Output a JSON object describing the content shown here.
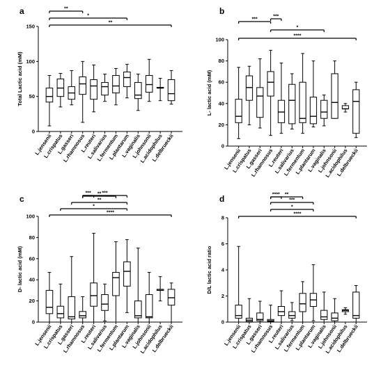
{
  "categories": [
    "L.jensenii",
    "L.crispatus",
    "L.gasseri",
    "L.rhamnosus",
    "L.reuteri",
    "L.salivarius",
    "L.fermentum",
    "L.plantarum",
    "L.vaginalis",
    "L.johnsonii",
    "L.acidophilus",
    "L.delbrueckii"
  ],
  "chart_data": [
    {
      "panel": "a",
      "type": "boxplot",
      "ylabel": "Total Lactic acid (mM)",
      "ylim": [
        0,
        150
      ],
      "yticks": [
        0,
        50,
        100,
        150
      ],
      "series": [
        {
          "name": "L.jensenii",
          "min": 8,
          "q1": 42,
          "median": 50,
          "q3": 62,
          "max": 80
        },
        {
          "name": "L.crispatus",
          "min": 35,
          "q1": 50,
          "median": 62,
          "q3": 75,
          "max": 83
        },
        {
          "name": "L.gasseri",
          "min": 38,
          "q1": 46,
          "median": 55,
          "q3": 64,
          "max": 87
        },
        {
          "name": "L.rhamnosus",
          "min": 13,
          "q1": 53,
          "median": 68,
          "q3": 78,
          "max": 100
        },
        {
          "name": "L.reuteri",
          "min": 28,
          "q1": 46,
          "median": 65,
          "q3": 74,
          "max": 95
        },
        {
          "name": "L.salivarius",
          "min": 43,
          "q1": 52,
          "median": 64,
          "q3": 70,
          "max": 82
        },
        {
          "name": "L.fermentum",
          "min": 38,
          "q1": 55,
          "median": 65,
          "q3": 80,
          "max": 90
        },
        {
          "name": "L.plantarum",
          "min": 48,
          "q1": 64,
          "median": 77,
          "q3": 85,
          "max": 96
        },
        {
          "name": "L.vaginalis",
          "min": 30,
          "q1": 47,
          "median": 52,
          "q3": 70,
          "max": 82
        },
        {
          "name": "L.johnsonii",
          "min": 43,
          "q1": 56,
          "median": 67,
          "q3": 80,
          "max": 103
        },
        {
          "name": "L.acidophilus",
          "min": 44,
          "q1": 62,
          "median": 62,
          "q3": 63,
          "max": 76
        },
        {
          "name": "L.delbrueckii",
          "min": 39,
          "q1": 44,
          "median": 54,
          "q3": 74,
          "max": 87
        }
      ],
      "comparisons": [
        {
          "from": 0,
          "to": 3,
          "label": "**",
          "level": 1
        },
        {
          "from": 0,
          "to": 7,
          "label": "*",
          "level": 2
        },
        {
          "from": 0,
          "to": 11,
          "label": "**",
          "level": 3
        }
      ]
    },
    {
      "panel": "b",
      "type": "boxplot",
      "ylabel": "L- lactic acid (mM)",
      "ylim": [
        0,
        100
      ],
      "yticks": [
        0,
        20,
        40,
        60,
        80,
        100
      ],
      "series": [
        {
          "name": "L.jensenii",
          "min": 7,
          "q1": 22,
          "median": 28,
          "q3": 44,
          "max": 74
        },
        {
          "name": "L.crispatus",
          "min": 20,
          "q1": 43,
          "median": 55,
          "q3": 66,
          "max": 75
        },
        {
          "name": "L.gasseri",
          "min": 17,
          "q1": 27,
          "median": 47,
          "q3": 55,
          "max": 82
        },
        {
          "name": "L.rhamnosus",
          "min": 10,
          "q1": 47,
          "median": 60,
          "q3": 70,
          "max": 90
        },
        {
          "name": "L.reuteri",
          "min": 12,
          "q1": 22,
          "median": 32,
          "q3": 43,
          "max": 78
        },
        {
          "name": "L.salivarius",
          "min": 16,
          "q1": 21,
          "median": 43,
          "q3": 58,
          "max": 68
        },
        {
          "name": "L.fermentum",
          "min": 12,
          "q1": 22,
          "median": 26,
          "q3": 60,
          "max": 87
        },
        {
          "name": "L.plantarum",
          "min": 18,
          "q1": 21,
          "median": 28,
          "q3": 46,
          "max": 80
        },
        {
          "name": "L.vaginalis",
          "min": 19,
          "q1": 26,
          "median": 32,
          "q3": 43,
          "max": 48
        },
        {
          "name": "L.johnsonii",
          "min": 26,
          "q1": 26,
          "median": 41,
          "q3": 68,
          "max": 80
        },
        {
          "name": "L.acidophilus",
          "min": 32,
          "q1": 35,
          "median": 35,
          "q3": 38,
          "max": 40
        },
        {
          "name": "L.delbrueckii",
          "min": 8,
          "q1": 12,
          "median": 42,
          "q3": 53,
          "max": 60
        }
      ],
      "comparisons": [
        {
          "from": 3,
          "to": 4,
          "label": "***",
          "level": 1
        },
        {
          "from": 0,
          "to": 3,
          "label": "***",
          "level": 2
        },
        {
          "from": 3,
          "to": 8,
          "label": "*",
          "level": 3
        },
        {
          "from": 0,
          "to": 11,
          "label": "****",
          "level": 4
        }
      ]
    },
    {
      "panel": "c",
      "type": "boxplot",
      "ylabel": "D- lactic acid (mM)",
      "ylim": [
        0,
        100
      ],
      "yticks": [
        0,
        20,
        40,
        60,
        80,
        100
      ],
      "series": [
        {
          "name": "L.jensenii",
          "min": 0,
          "q1": 8,
          "median": 14,
          "q3": 30,
          "max": 47
        },
        {
          "name": "L.crispatus",
          "min": 0,
          "q1": 4,
          "median": 8,
          "q3": 15,
          "max": 36
        },
        {
          "name": "L.gasseri",
          "min": 0,
          "q1": 3,
          "median": 5,
          "q3": 24,
          "max": 62
        },
        {
          "name": "L.rhamnosus",
          "min": 0,
          "q1": 4,
          "median": 6,
          "q3": 10,
          "max": 24
        },
        {
          "name": "L.reuteri",
          "min": 0,
          "q1": 15,
          "median": 25,
          "q3": 37,
          "max": 84
        },
        {
          "name": "L.salivarius",
          "min": 1,
          "q1": 11,
          "median": 17,
          "q3": 26,
          "max": 36
        },
        {
          "name": "L.fermentum",
          "min": 0,
          "q1": 25,
          "median": 42,
          "q3": 47,
          "max": 76
        },
        {
          "name": "L.plantarum",
          "min": 9,
          "q1": 34,
          "median": 48,
          "q3": 57,
          "max": 78
        },
        {
          "name": "L.vaginalis",
          "min": 0,
          "q1": 4,
          "median": 6,
          "q3": 20,
          "max": 70
        },
        {
          "name": "L.johnsonii",
          "min": 0,
          "q1": 4,
          "median": 5,
          "q3": 26,
          "max": 47
        },
        {
          "name": "L.acidophilus",
          "min": 20,
          "q1": 30,
          "median": 30,
          "q3": 31,
          "max": 43
        },
        {
          "name": "L.delbrueckii",
          "min": 0,
          "q1": 16,
          "median": 23,
          "q3": 31,
          "max": 37
        }
      ],
      "comparisons": [
        {
          "from": 3,
          "to": 4,
          "label": "***",
          "level": 1
        },
        {
          "from": 3,
          "to": 7,
          "label": "***",
          "level": 2
        },
        {
          "from": 3,
          "to": 6,
          "label": "**",
          "level": 3
        },
        {
          "from": 2,
          "to": 7,
          "label": "**",
          "level": 4
        },
        {
          "from": 1,
          "to": 7,
          "label": "*",
          "level": 5
        },
        {
          "from": 0,
          "to": 11,
          "label": "****",
          "level": 6
        }
      ]
    },
    {
      "panel": "d",
      "type": "boxplot",
      "ylabel": "D/L lactic acid ratio",
      "ylim": [
        0,
        8
      ],
      "yticks": [
        0,
        2,
        4,
        6,
        8
      ],
      "series": [
        {
          "name": "L.jensenii",
          "min": 0,
          "q1": 0.3,
          "median": 0.5,
          "q3": 1.3,
          "max": 5.8
        },
        {
          "name": "L.crispatus",
          "min": 0,
          "q1": 0.05,
          "median": 0.15,
          "q3": 0.3,
          "max": 1.8
        },
        {
          "name": "L.gasseri",
          "min": 0,
          "q1": 0.1,
          "median": 0.2,
          "q3": 0.7,
          "max": 1.6
        },
        {
          "name": "L.rhamnosus",
          "min": 0,
          "q1": 0.05,
          "median": 0.1,
          "q3": 0.2,
          "max": 1.3
        },
        {
          "name": "L.reuteri",
          "min": 0,
          "q1": 0.5,
          "median": 0.8,
          "q3": 1.2,
          "max": 2.4
        },
        {
          "name": "L.salivarius",
          "min": 0.1,
          "q1": 0.3,
          "median": 0.5,
          "q3": 0.8,
          "max": 1.5
        },
        {
          "name": "L.fermentum",
          "min": 0,
          "q1": 0.8,
          "median": 1.4,
          "q3": 2.2,
          "max": 3.1
        },
        {
          "name": "L.plantarum",
          "min": 0.1,
          "q1": 1.2,
          "median": 1.7,
          "q3": 2.2,
          "max": 4.4
        },
        {
          "name": "L.vaginalis",
          "min": 0,
          "q1": 0.2,
          "median": 0.4,
          "q3": 0.9,
          "max": 2.3
        },
        {
          "name": "L.johnsonii",
          "min": 0,
          "q1": 0.1,
          "median": 0.3,
          "q3": 0.7,
          "max": 1.8
        },
        {
          "name": "L.acidophilus",
          "min": 0.6,
          "q1": 0.8,
          "median": 0.9,
          "q3": 0.95,
          "max": 1.1
        },
        {
          "name": "L.delbrueckii",
          "min": 0,
          "q1": 0.3,
          "median": 0.5,
          "q3": 2.3,
          "max": 2.8
        }
      ],
      "comparisons": [
        {
          "from": 3,
          "to": 4,
          "label": "****",
          "level": 1
        },
        {
          "from": 3,
          "to": 6,
          "label": "**",
          "level": 2
        },
        {
          "from": 3,
          "to": 7,
          "label": "***",
          "level": 3
        },
        {
          "from": 3,
          "to": 7,
          "label": "*",
          "level": 4
        },
        {
          "from": 0,
          "to": 11,
          "label": "****",
          "level": 5
        }
      ]
    }
  ]
}
